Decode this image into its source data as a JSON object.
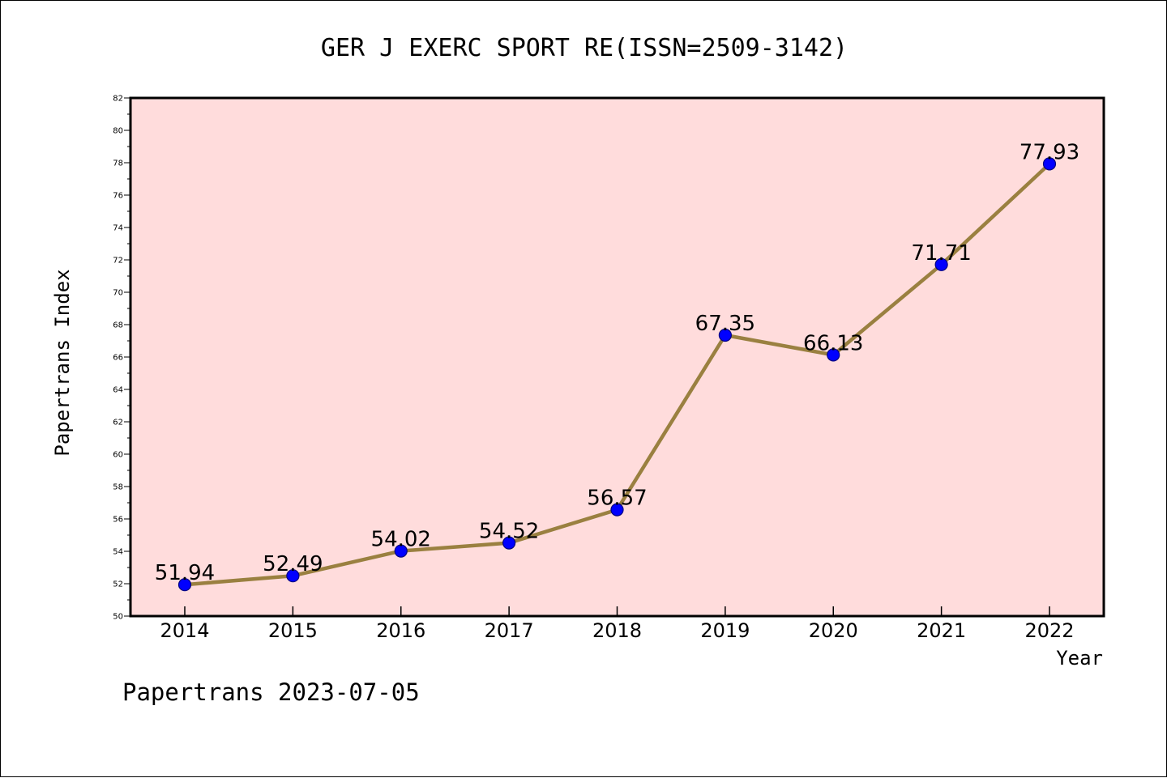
{
  "chart_data": {
    "type": "line",
    "title": "GER J EXERC SPORT RE(ISSN=2509-3142)",
    "xlabel": "Year",
    "ylabel": "Papertrans Index",
    "footer": "Papertrans 2023-07-05",
    "x": [
      "2014",
      "2015",
      "2016",
      "2017",
      "2018",
      "2019",
      "2020",
      "2021",
      "2022"
    ],
    "series": [
      {
        "values": [
          51.94,
          52.49,
          54.02,
          54.52,
          56.57,
          67.35,
          66.13,
          71.71,
          77.93
        ],
        "labels": [
          "51.94",
          "52.49",
          "54.02",
          "54.52",
          "56.57",
          "67.35",
          "66.13",
          "71.71",
          "77.93"
        ]
      }
    ],
    "ylim": [
      50,
      82
    ],
    "yticks": [
      "50",
      "52",
      "54",
      "56",
      "58",
      "60",
      "62",
      "64",
      "66",
      "68",
      "70",
      "72",
      "74",
      "76",
      "78",
      "80",
      "82"
    ],
    "colors": {
      "plot_background": "#FFDCDC",
      "line": "#9A8040",
      "marker": "#0000FF",
      "marker_edge": "#000080"
    },
    "grid": false,
    "legend": "none"
  }
}
